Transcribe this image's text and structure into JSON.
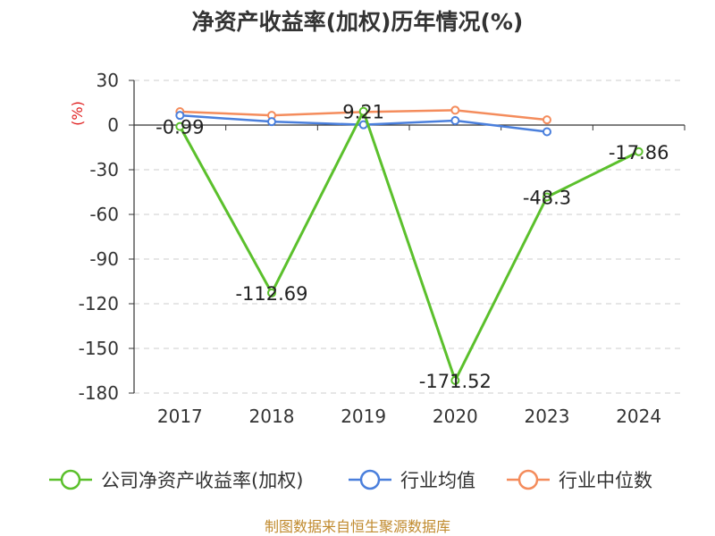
{
  "chart_data": {
    "type": "line",
    "title": "净资产收益率(加权)历年情况(%)",
    "unit_label": "(%)",
    "categories": [
      "2017",
      "2018",
      "2019",
      "2020",
      "2023",
      "2024"
    ],
    "y_ticks": [
      "30",
      "0",
      "-30",
      "-60",
      "-90",
      "-120",
      "-150",
      "-180"
    ],
    "ylim": [
      -180,
      30
    ],
    "grid": true,
    "legend_position": "bottom",
    "series": [
      {
        "name": "公司净资产收益率(加权)",
        "color": "#5bc02c",
        "show_labels": true,
        "values": [
          -0.99,
          -112.69,
          9.21,
          -171.52,
          -48.3,
          -17.86
        ],
        "labels": [
          "-0.99",
          "-112.69",
          "9.21",
          "-171.52",
          "-48.3",
          "-17.86"
        ]
      },
      {
        "name": "行业均值",
        "color": "#4a7fdc",
        "show_labels": false,
        "values": [
          6.5,
          2.3,
          0.2,
          3.0,
          -4.5,
          null
        ]
      },
      {
        "name": "行业中位数",
        "color": "#f48c5c",
        "show_labels": false,
        "values": [
          9.0,
          6.5,
          8.8,
          10.0,
          3.5,
          null
        ]
      }
    ],
    "source": "制图数据来自恒生聚源数据库",
    "unit_color": "#e02020",
    "source_color": "#c08a2e"
  }
}
